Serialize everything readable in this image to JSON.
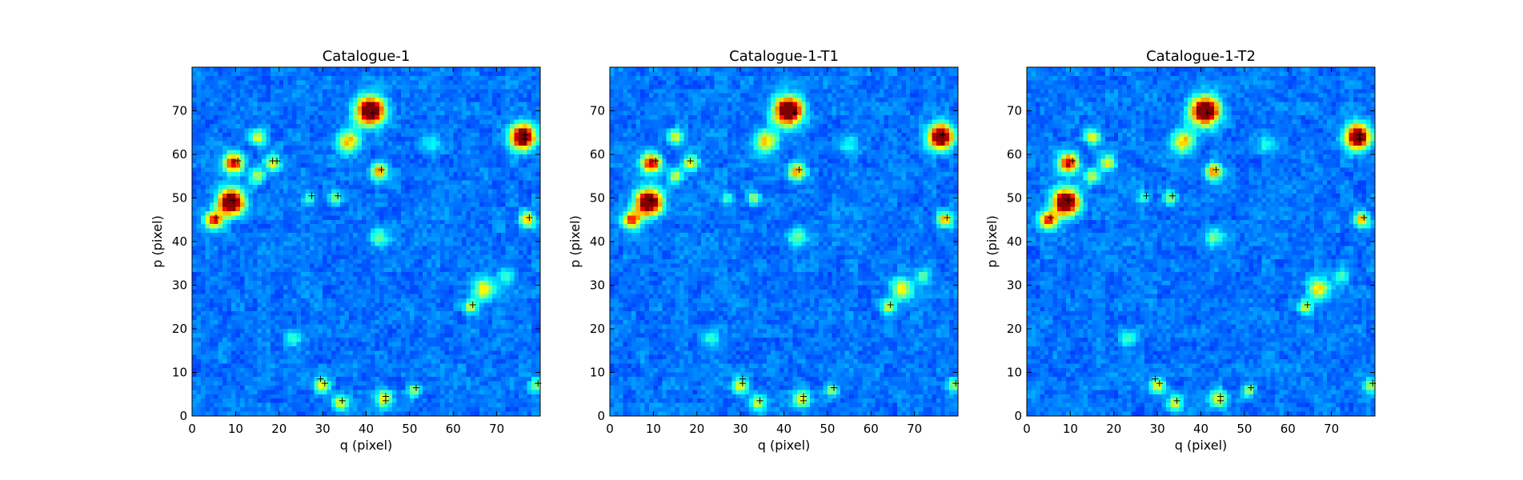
{
  "chart_data": [
    {
      "type": "heatmap",
      "title": "Catalogue-1",
      "xlabel": "q (pixel)",
      "ylabel": "p (pixel)",
      "xlim": [
        0,
        80
      ],
      "ylim": [
        0,
        80
      ],
      "xticks": [
        0,
        10,
        20,
        30,
        40,
        50,
        60,
        70
      ],
      "yticks": [
        0,
        10,
        20,
        30,
        40,
        50,
        60,
        70
      ],
      "colormap": "jet",
      "sources": [
        {
          "q": 41,
          "p": 70,
          "peak": 1.0,
          "sigma": 2.2
        },
        {
          "q": 76,
          "p": 64,
          "peak": 1.0,
          "sigma": 1.9
        },
        {
          "q": 9,
          "p": 49,
          "peak": 1.0,
          "sigma": 2.0
        },
        {
          "q": 9.5,
          "p": 58,
          "peak": 0.72,
          "sigma": 1.5
        },
        {
          "q": 5,
          "p": 45,
          "peak": 0.66,
          "sigma": 1.4
        },
        {
          "q": 43,
          "p": 56,
          "peak": 0.55,
          "sigma": 1.3
        },
        {
          "q": 77,
          "p": 45,
          "peak": 0.5,
          "sigma": 1.2
        },
        {
          "q": 36,
          "p": 63,
          "peak": 0.45,
          "sigma": 1.8
        },
        {
          "q": 15,
          "p": 64,
          "peak": 0.38,
          "sigma": 1.2
        },
        {
          "q": 18.5,
          "p": 58,
          "peak": 0.4,
          "sigma": 1.2
        },
        {
          "q": 15,
          "p": 55,
          "peak": 0.34,
          "sigma": 1.2
        },
        {
          "q": 67,
          "p": 29,
          "peak": 0.45,
          "sigma": 1.6
        },
        {
          "q": 64,
          "p": 25,
          "peak": 0.33,
          "sigma": 1.1
        },
        {
          "q": 33,
          "p": 50,
          "peak": 0.33,
          "sigma": 1.0
        },
        {
          "q": 27,
          "p": 50,
          "peak": 0.22,
          "sigma": 1.0
        },
        {
          "q": 30,
          "p": 7,
          "peak": 0.42,
          "sigma": 1.2
        },
        {
          "q": 34,
          "p": 3,
          "peak": 0.36,
          "sigma": 1.2
        },
        {
          "q": 44,
          "p": 4,
          "peak": 0.45,
          "sigma": 1.3
        },
        {
          "q": 51,
          "p": 6,
          "peak": 0.33,
          "sigma": 1.0
        },
        {
          "q": 79,
          "p": 7,
          "peak": 0.3,
          "sigma": 1.0
        },
        {
          "q": 43,
          "p": 41,
          "peak": 0.28,
          "sigma": 1.4
        },
        {
          "q": 72,
          "p": 32,
          "peak": 0.22,
          "sigma": 1.2
        },
        {
          "q": 23,
          "p": 18,
          "peak": 0.2,
          "sigma": 1.2
        },
        {
          "q": 55,
          "p": 62,
          "peak": 0.18,
          "sigma": 1.4
        }
      ],
      "markers": [
        {
          "q": 41,
          "p": 69
        },
        {
          "q": 76,
          "p": 64
        },
        {
          "q": 76,
          "p": 63
        },
        {
          "q": 10,
          "p": 58
        },
        {
          "q": 18,
          "p": 58
        },
        {
          "q": 19,
          "p": 58
        },
        {
          "q": 43,
          "p": 56
        },
        {
          "q": 9,
          "p": 49
        },
        {
          "q": 27,
          "p": 50
        },
        {
          "q": 33,
          "p": 50
        },
        {
          "q": 5,
          "p": 45
        },
        {
          "q": 77,
          "p": 45
        },
        {
          "q": 64,
          "p": 25
        },
        {
          "q": 29,
          "p": 8
        },
        {
          "q": 30,
          "p": 7
        },
        {
          "q": 34,
          "p": 3
        },
        {
          "q": 44,
          "p": 4
        },
        {
          "q": 44,
          "p": 3
        },
        {
          "q": 51,
          "p": 6
        },
        {
          "q": 79,
          "p": 7
        }
      ]
    },
    {
      "type": "heatmap",
      "title": "Catalogue-1-T1",
      "xlabel": "q (pixel)",
      "ylabel": "p (pixel)",
      "xlim": [
        0,
        80
      ],
      "ylim": [
        0,
        80
      ],
      "xticks": [
        0,
        10,
        20,
        30,
        40,
        50,
        60,
        70
      ],
      "yticks": [
        0,
        10,
        20,
        30,
        40,
        50,
        60,
        70
      ],
      "colormap": "jet",
      "sources": [
        {
          "q": 41,
          "p": 70,
          "peak": 1.0,
          "sigma": 2.2
        },
        {
          "q": 76,
          "p": 64,
          "peak": 1.0,
          "sigma": 1.9
        },
        {
          "q": 9,
          "p": 49,
          "peak": 1.0,
          "sigma": 2.0
        },
        {
          "q": 9.5,
          "p": 58,
          "peak": 0.72,
          "sigma": 1.5
        },
        {
          "q": 5,
          "p": 45,
          "peak": 0.66,
          "sigma": 1.4
        },
        {
          "q": 43,
          "p": 56,
          "peak": 0.55,
          "sigma": 1.3
        },
        {
          "q": 77,
          "p": 45,
          "peak": 0.5,
          "sigma": 1.2
        },
        {
          "q": 36,
          "p": 63,
          "peak": 0.45,
          "sigma": 1.8
        },
        {
          "q": 15,
          "p": 64,
          "peak": 0.38,
          "sigma": 1.2
        },
        {
          "q": 18.5,
          "p": 58,
          "peak": 0.4,
          "sigma": 1.2
        },
        {
          "q": 15,
          "p": 55,
          "peak": 0.34,
          "sigma": 1.2
        },
        {
          "q": 67,
          "p": 29,
          "peak": 0.45,
          "sigma": 1.6
        },
        {
          "q": 64,
          "p": 25,
          "peak": 0.33,
          "sigma": 1.1
        },
        {
          "q": 33,
          "p": 50,
          "peak": 0.33,
          "sigma": 1.0
        },
        {
          "q": 27,
          "p": 50,
          "peak": 0.22,
          "sigma": 1.0
        },
        {
          "q": 30,
          "p": 7,
          "peak": 0.42,
          "sigma": 1.2
        },
        {
          "q": 34,
          "p": 3,
          "peak": 0.36,
          "sigma": 1.2
        },
        {
          "q": 44,
          "p": 4,
          "peak": 0.45,
          "sigma": 1.3
        },
        {
          "q": 51,
          "p": 6,
          "peak": 0.33,
          "sigma": 1.0
        },
        {
          "q": 79,
          "p": 7,
          "peak": 0.3,
          "sigma": 1.0
        },
        {
          "q": 43,
          "p": 41,
          "peak": 0.28,
          "sigma": 1.4
        },
        {
          "q": 72,
          "p": 32,
          "peak": 0.22,
          "sigma": 1.2
        },
        {
          "q": 23,
          "p": 18,
          "peak": 0.2,
          "sigma": 1.2
        },
        {
          "q": 55,
          "p": 62,
          "peak": 0.18,
          "sigma": 1.4
        }
      ],
      "markers": [
        {
          "q": 42,
          "p": 69
        },
        {
          "q": 76,
          "p": 64
        },
        {
          "q": 10,
          "p": 58
        },
        {
          "q": 18,
          "p": 58
        },
        {
          "q": 43,
          "p": 56
        },
        {
          "q": 9,
          "p": 49
        },
        {
          "q": 77,
          "p": 45
        },
        {
          "q": 64,
          "p": 25
        },
        {
          "q": 30,
          "p": 8
        },
        {
          "q": 30,
          "p": 7
        },
        {
          "q": 34,
          "p": 3
        },
        {
          "q": 44,
          "p": 4
        },
        {
          "q": 44,
          "p": 3
        },
        {
          "q": 51,
          "p": 6
        },
        {
          "q": 79,
          "p": 7
        }
      ]
    },
    {
      "type": "heatmap",
      "title": "Catalogue-1-T2",
      "xlabel": "q (pixel)",
      "ylabel": "p (pixel)",
      "xlim": [
        0,
        80
      ],
      "ylim": [
        0,
        80
      ],
      "xticks": [
        0,
        10,
        20,
        30,
        40,
        50,
        60,
        70
      ],
      "yticks": [
        0,
        10,
        20,
        30,
        40,
        50,
        60,
        70
      ],
      "colormap": "jet",
      "sources": [
        {
          "q": 41,
          "p": 70,
          "peak": 1.0,
          "sigma": 2.2
        },
        {
          "q": 76,
          "p": 64,
          "peak": 1.0,
          "sigma": 1.9
        },
        {
          "q": 9,
          "p": 49,
          "peak": 1.0,
          "sigma": 2.0
        },
        {
          "q": 9.5,
          "p": 58,
          "peak": 0.72,
          "sigma": 1.5
        },
        {
          "q": 5,
          "p": 45,
          "peak": 0.66,
          "sigma": 1.4
        },
        {
          "q": 43,
          "p": 56,
          "peak": 0.55,
          "sigma": 1.3
        },
        {
          "q": 77,
          "p": 45,
          "peak": 0.5,
          "sigma": 1.2
        },
        {
          "q": 36,
          "p": 63,
          "peak": 0.45,
          "sigma": 1.8
        },
        {
          "q": 15,
          "p": 64,
          "peak": 0.38,
          "sigma": 1.2
        },
        {
          "q": 18.5,
          "p": 58,
          "peak": 0.4,
          "sigma": 1.2
        },
        {
          "q": 15,
          "p": 55,
          "peak": 0.34,
          "sigma": 1.2
        },
        {
          "q": 67,
          "p": 29,
          "peak": 0.45,
          "sigma": 1.6
        },
        {
          "q": 64,
          "p": 25,
          "peak": 0.33,
          "sigma": 1.1
        },
        {
          "q": 33,
          "p": 50,
          "peak": 0.33,
          "sigma": 1.0
        },
        {
          "q": 27,
          "p": 50,
          "peak": 0.22,
          "sigma": 1.0
        },
        {
          "q": 30,
          "p": 7,
          "peak": 0.42,
          "sigma": 1.2
        },
        {
          "q": 34,
          "p": 3,
          "peak": 0.36,
          "sigma": 1.2
        },
        {
          "q": 44,
          "p": 4,
          "peak": 0.45,
          "sigma": 1.3
        },
        {
          "q": 51,
          "p": 6,
          "peak": 0.33,
          "sigma": 1.0
        },
        {
          "q": 79,
          "p": 7,
          "peak": 0.3,
          "sigma": 1.0
        },
        {
          "q": 43,
          "p": 41,
          "peak": 0.28,
          "sigma": 1.4
        },
        {
          "q": 72,
          "p": 32,
          "peak": 0.22,
          "sigma": 1.2
        },
        {
          "q": 23,
          "p": 18,
          "peak": 0.2,
          "sigma": 1.2
        },
        {
          "q": 55,
          "p": 62,
          "peak": 0.18,
          "sigma": 1.4
        }
      ],
      "markers": [
        {
          "q": 41,
          "p": 69
        },
        {
          "q": 76,
          "p": 64
        },
        {
          "q": 76,
          "p": 63
        },
        {
          "q": 10,
          "p": 58
        },
        {
          "q": 43,
          "p": 56
        },
        {
          "q": 9,
          "p": 49
        },
        {
          "q": 27,
          "p": 50
        },
        {
          "q": 33,
          "p": 50
        },
        {
          "q": 5,
          "p": 45
        },
        {
          "q": 77,
          "p": 45
        },
        {
          "q": 64,
          "p": 25
        },
        {
          "q": 29,
          "p": 8
        },
        {
          "q": 30,
          "p": 7
        },
        {
          "q": 34,
          "p": 3
        },
        {
          "q": 44,
          "p": 4
        },
        {
          "q": 44,
          "p": 3
        },
        {
          "q": 51,
          "p": 6
        },
        {
          "q": 79,
          "p": 7
        }
      ]
    }
  ]
}
